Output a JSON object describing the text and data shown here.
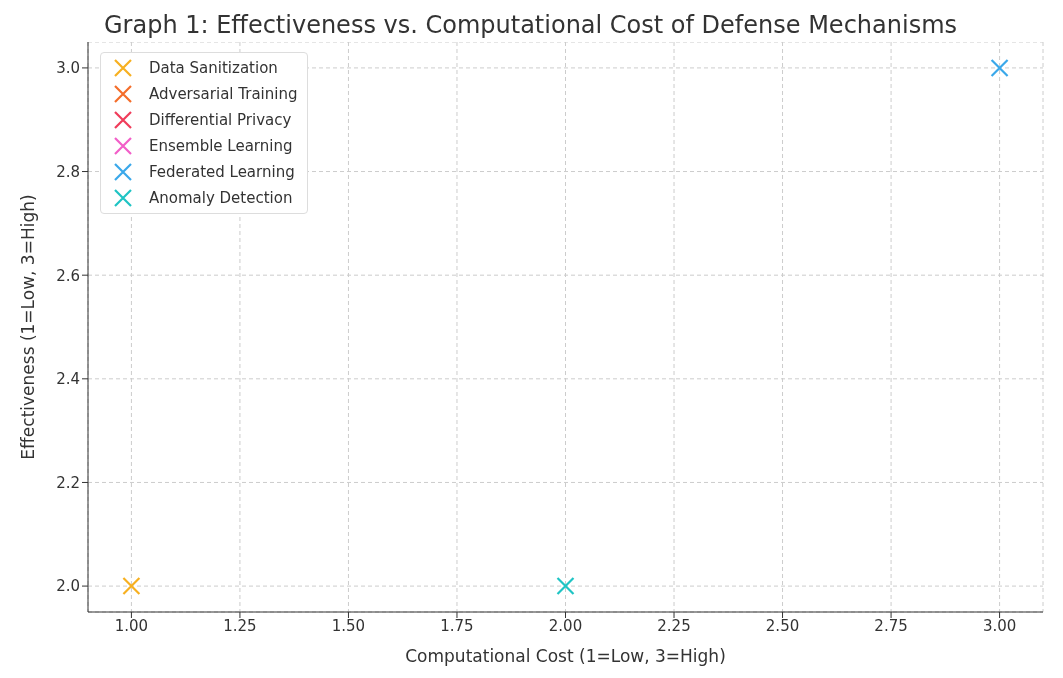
{
  "chart_data": {
    "type": "scatter",
    "title": "Graph 1: Effectiveness vs. Computational Cost of Defense Mechanisms",
    "xlabel": "Computational Cost (1=Low, 3=High)",
    "ylabel": "Effectiveness (1=Low, 3=High)",
    "marker": "cross",
    "grid": true,
    "legend": "top left",
    "xlim": [
      0.9,
      3.1
    ],
    "xticks": [
      {
        "value": 1,
        "label": "1.00"
      },
      {
        "value": 1.25,
        "label": "1.25"
      },
      {
        "value": 1.5,
        "label": "1.50"
      },
      {
        "value": 1.75,
        "label": "1.75"
      },
      {
        "value": 2,
        "label": "2.00"
      },
      {
        "value": 2.25,
        "label": "2.25"
      },
      {
        "value": 2.5,
        "label": "2.50"
      },
      {
        "value": 2.75,
        "label": "2.75"
      },
      {
        "value": 3,
        "label": "3.00"
      }
    ],
    "ylim": [
      1.95,
      3.05
    ],
    "yticks": [
      {
        "value": 2,
        "label": "2.0"
      },
      {
        "value": 2.2,
        "label": "2.2"
      },
      {
        "value": 2.4,
        "label": "2.4"
      },
      {
        "value": 2.6,
        "label": "2.6"
      },
      {
        "value": 2.8,
        "label": "2.8"
      },
      {
        "value": 3,
        "label": "3.0"
      }
    ],
    "series": [
      {
        "name": "Data Sanitization",
        "color": "#f7b020",
        "x": [
          1
        ],
        "values": [
          2
        ]
      },
      {
        "name": "Adversarial Training",
        "color": "#f46d2a",
        "x": [
          null
        ],
        "values": [
          null
        ]
      },
      {
        "name": "Differential Privacy",
        "color": "#f03c5a",
        "x": [
          null
        ],
        "values": [
          null
        ]
      },
      {
        "name": "Ensemble Learning",
        "color": "#f25ec8",
        "x": [
          null
        ],
        "values": [
          null
        ]
      },
      {
        "name": "Federated Learning",
        "color": "#3aa8ea",
        "x": [
          3
        ],
        "values": [
          3
        ]
      },
      {
        "name": "Anomaly Detection",
        "color": "#1fc4c4",
        "x": [
          2
        ],
        "values": [
          2
        ]
      }
    ]
  }
}
